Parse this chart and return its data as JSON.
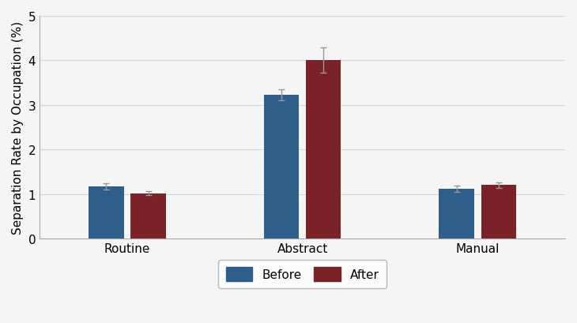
{
  "categories": [
    "Routine",
    "Abstract",
    "Manual"
  ],
  "before_values": [
    1.17,
    3.23,
    1.12
  ],
  "after_values": [
    1.02,
    4.01,
    1.2
  ],
  "before_errors": [
    0.07,
    0.13,
    0.07
  ],
  "after_errors": [
    0.05,
    0.28,
    0.07
  ],
  "before_color": "#2E5F8A",
  "after_color": "#7B2229",
  "ylabel": "Separation Rate by Occupation (%)",
  "ylim": [
    0,
    5
  ],
  "yticks": [
    0,
    1,
    2,
    3,
    4,
    5
  ],
  "legend_labels": [
    "Before",
    "After"
  ],
  "bar_width": 0.2,
  "group_positions": [
    1,
    2,
    3
  ],
  "background_color": "#f5f5f5",
  "grid_color": "#c8dce8",
  "error_color": "#999999",
  "label_fontsize": 11,
  "tick_fontsize": 11
}
